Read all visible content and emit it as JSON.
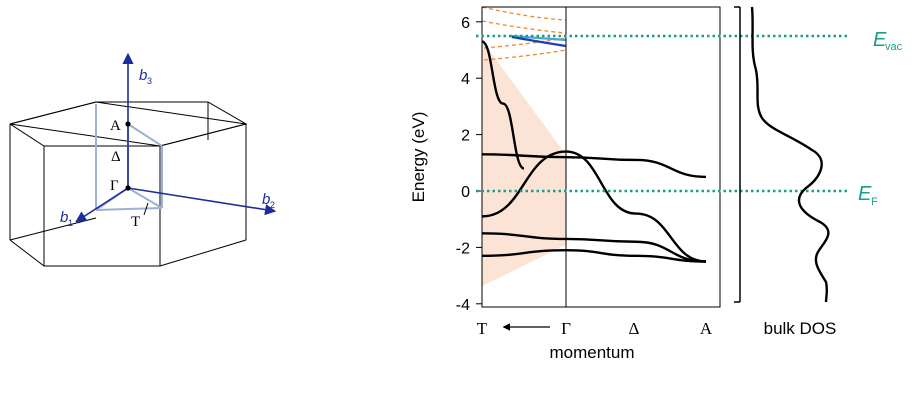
{
  "brillouin_zone": {
    "axes": {
      "b1": "b",
      "b1_sub": "1",
      "b2": "b",
      "b2_sub": "2",
      "b3": "b",
      "b3_sub": "3"
    },
    "points": {
      "A": "A",
      "Gamma": "Γ",
      "Delta": "Δ",
      "T": "T"
    },
    "colors": {
      "axis": "#1c2d9e",
      "zone_edge": "#000000",
      "path": "#9fb0d6"
    }
  },
  "band_panel": {
    "ylabel": "Energy (eV)",
    "xlabel": "momentum",
    "yticks": [
      "6",
      "4",
      "2",
      "0",
      "-2",
      "-4"
    ],
    "xticks": {
      "T": "T",
      "arrow": "⟵",
      "Gamma": "Γ",
      "Delta": "Δ",
      "A": "A"
    },
    "dos_label": "bulk DOS",
    "evac_main": "E",
    "evac_sub": "vac",
    "ef_main": "E",
    "ef_sub": "F",
    "colors": {
      "shade": "#fbe4d6",
      "dotted": "#1a9e8a",
      "orange_dash": "#f08a2a",
      "blue_light": "#4aa3e0",
      "blue_dark": "#1a3fb0"
    }
  },
  "chart_data": {
    "type": "line",
    "title": "",
    "xlabel": "momentum",
    "ylabel": "Energy (eV)",
    "ylim": [
      -4,
      6.5
    ],
    "x_ticks": [
      "T",
      "Γ",
      "Δ",
      "A"
    ],
    "reference_levels": [
      {
        "name": "E_vac",
        "energy": 5.5
      },
      {
        "name": "E_F",
        "energy": 0
      }
    ],
    "series": [
      {
        "name": "",
        "x": [
          0,
          0.5,
          1
        ],
        "values": [
          5.3,
          3.1,
          0.8
        ]
      },
      {
        "name": "",
        "x": [
          0,
          1,
          2,
          3
        ],
        "values": [
          1.3,
          1.2,
          1.1,
          0.5
        ]
      },
      {
        "name": "",
        "x": [
          0,
          1,
          2,
          3
        ],
        "values": [
          -0.9,
          1.4,
          -0.8,
          -2.5
        ]
      },
      {
        "name": "",
        "x": [
          0,
          1,
          2,
          3
        ],
        "values": [
          -1.5,
          -1.7,
          -1.8,
          -2.5
        ]
      },
      {
        "name": "",
        "x": [
          0,
          1,
          2,
          3
        ],
        "values": [
          -2.3,
          -2.1,
          -2.3,
          -2.5
        ]
      }
    ]
  }
}
